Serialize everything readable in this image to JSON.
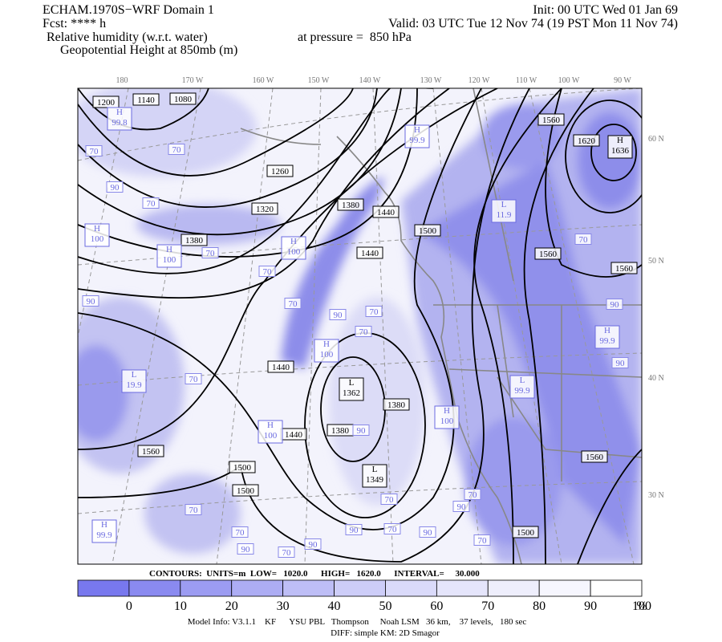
{
  "header": {
    "title": "ECHAM.1970S−WRF Domain 1",
    "init": "Init: 00 UTC Wed 01 Jan 69",
    "fcst": "Fcst: **** h",
    "valid": "Valid: 03 UTC Tue 12 Nov 74 (19 PST Mon 11 Nov 74)",
    "field1": "Relative humidity (w.r.t. water)",
    "pressure": "at pressure =  850 hPa",
    "field2": "Geopotential Height at 850mb (m)"
  },
  "longitude_labels": [
    "180",
    "170 W",
    "160 W",
    "150 W",
    "140 W",
    "130 W",
    "120 W",
    "110 W",
    "100 W",
    "90 W"
  ],
  "latitude_labels": [
    "60 N",
    "50 N",
    "40 N",
    "30 N"
  ],
  "contour_labels": [
    "1200",
    "1140",
    "1080",
    "1560",
    "1620",
    "1260",
    "1320",
    "1380",
    "1440",
    "1380",
    "1500",
    "1440",
    "1560",
    "1560",
    "1440",
    "1380",
    "1380",
    "1440",
    "1560",
    "1500",
    "1560",
    "1500",
    "1500"
  ],
  "highs_lows": [
    {
      "symbol": "H",
      "value": "99.8"
    },
    {
      "symbol": "H",
      "value": "99.9"
    },
    {
      "symbol": "H",
      "value": "1636"
    },
    {
      "symbol": "L",
      "value": "11.9"
    },
    {
      "symbol": "H",
      "value": "100"
    },
    {
      "symbol": "H",
      "value": "100"
    },
    {
      "symbol": "H",
      "value": "100"
    },
    {
      "symbol": "H",
      "value": "100"
    },
    {
      "symbol": "L",
      "value": "19.9"
    },
    {
      "symbol": "L",
      "value": "1362"
    },
    {
      "symbol": "H",
      "value": "100"
    },
    {
      "symbol": "H",
      "value": "100"
    },
    {
      "symbol": "L",
      "value": "1349"
    },
    {
      "symbol": "H",
      "value": "99.9"
    },
    {
      "symbol": "H",
      "value": "99.9"
    },
    {
      "symbol": "L",
      "value": "99.9"
    }
  ],
  "rh_labels": [
    "70",
    "70",
    "90",
    "70",
    "70",
    "70",
    "70",
    "90",
    "70",
    "70",
    "90",
    "70",
    "90",
    "70",
    "70",
    "70",
    "90",
    "70",
    "90",
    "90",
    "70",
    "90",
    "70",
    "90",
    "70",
    "90",
    "90",
    "70"
  ],
  "contour_info": "CONTOURS:  UNITS=m  LOW=   1020.0      HIGH=   1620.0      INTERVAL=     30.000",
  "colorbar": {
    "labels": [
      "0",
      "10",
      "20",
      "30",
      "40",
      "50",
      "60",
      "70",
      "80",
      "90",
      "100"
    ],
    "unit": "%"
  },
  "footer": {
    "model_info": "Model Info: V3.1.1    KF      YSU PBL   Thompson     Noah LSM   36 km,    37 levels,   180 sec",
    "diff": "DIFF: simple KM: 2D Smagor"
  }
}
